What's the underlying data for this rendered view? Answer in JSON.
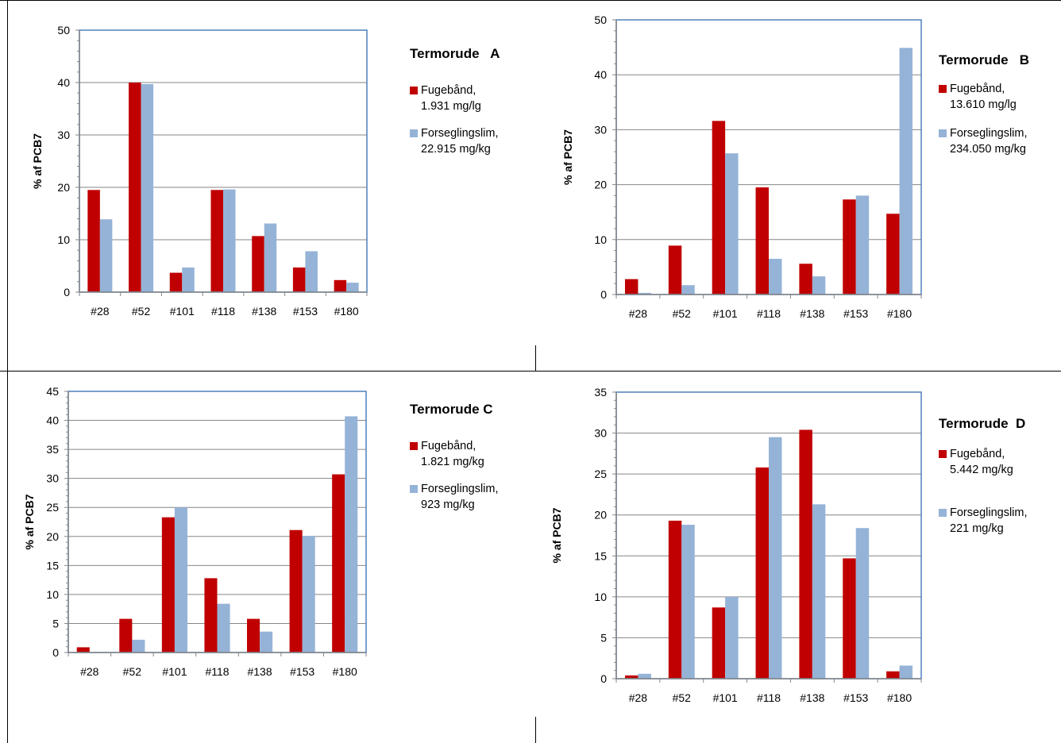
{
  "colors": {
    "fugebaand": "#c00000",
    "forseglingslim": "#95b3d7",
    "axis": "#4f81bd",
    "grid": "#868686"
  },
  "chart_data": [
    {
      "type": "bar",
      "title": "Termorude   A",
      "ylabel": "% af PCB7",
      "xlabel": "",
      "categories": [
        "#28",
        "#52",
        "#101",
        "#118",
        "#138",
        "#153",
        "#180"
      ],
      "ylim": [
        0,
        50
      ],
      "yticks": [
        "0",
        "10",
        "20",
        "30",
        "40",
        "50"
      ],
      "series": [
        {
          "name": "Fugebånd,",
          "name2": "1.931 mg/lg",
          "values": [
            19.5,
            40,
            3.7,
            19.5,
            10.7,
            4.7,
            2.3
          ]
        },
        {
          "name": "Forseglingslim,",
          "name2": "22.915 mg/kg",
          "values": [
            13.9,
            39.7,
            4.7,
            19.6,
            13.1,
            7.8,
            1.8
          ]
        }
      ]
    },
    {
      "type": "bar",
      "title": "Termorude   B",
      "ylabel": "% af PCB7",
      "xlabel": "",
      "categories": [
        "#28",
        "#52",
        "#101",
        "#118",
        "#138",
        "#153",
        "#180"
      ],
      "ylim": [
        0,
        50
      ],
      "yticks": [
        "0",
        "10",
        "20",
        "30",
        "40",
        "50"
      ],
      "series": [
        {
          "name": "Fugebånd,",
          "name2": "13.610 mg/lg",
          "values": [
            2.8,
            8.9,
            31.6,
            19.5,
            5.6,
            17.3,
            14.7
          ]
        },
        {
          "name": "Forseglingslim,",
          "name2": "234.050 mg/kg",
          "values": [
            0.3,
            1.7,
            25.7,
            6.5,
            3.3,
            18.0,
            44.9
          ]
        }
      ]
    },
    {
      "type": "bar",
      "title": "Termorude C",
      "ylabel": "% af PCB7",
      "xlabel": "",
      "categories": [
        "#28",
        "#52",
        "#101",
        "#118",
        "#138",
        "#153",
        "#180"
      ],
      "ylim": [
        0,
        45
      ],
      "yticks": [
        "0",
        "5",
        "10",
        "15",
        "20",
        "25",
        "30",
        "35",
        "40",
        "45"
      ],
      "series": [
        {
          "name": "Fugebånd,",
          "name2": "1.821 mg/kg",
          "values": [
            0.9,
            5.8,
            23.3,
            12.8,
            5.8,
            21.1,
            30.7
          ]
        },
        {
          "name": "Forseglingslim,",
          "name2": "923 mg/kg",
          "values": [
            0.1,
            2.2,
            25.0,
            8.4,
            3.6,
            20.1,
            40.7
          ]
        }
      ]
    },
    {
      "type": "bar",
      "title": "Termorude  D",
      "ylabel": "% af PCB7",
      "xlabel": "",
      "categories": [
        "#28",
        "#52",
        "#101",
        "#118",
        "#138",
        "#153",
        "#180"
      ],
      "ylim": [
        0,
        35
      ],
      "yticks": [
        "0",
        "5",
        "10",
        "15",
        "20",
        "25",
        "30",
        "35"
      ],
      "series": [
        {
          "name": "Fugebånd,",
          "name2": "5.442 mg/kg",
          "values": [
            0.4,
            19.3,
            8.7,
            25.8,
            30.4,
            14.7,
            0.9
          ]
        },
        {
          "name": "Forseglingslim,",
          "name2": "221 mg/kg",
          "values": [
            0.6,
            18.8,
            10.0,
            29.5,
            21.3,
            18.4,
            1.6
          ]
        }
      ]
    }
  ]
}
